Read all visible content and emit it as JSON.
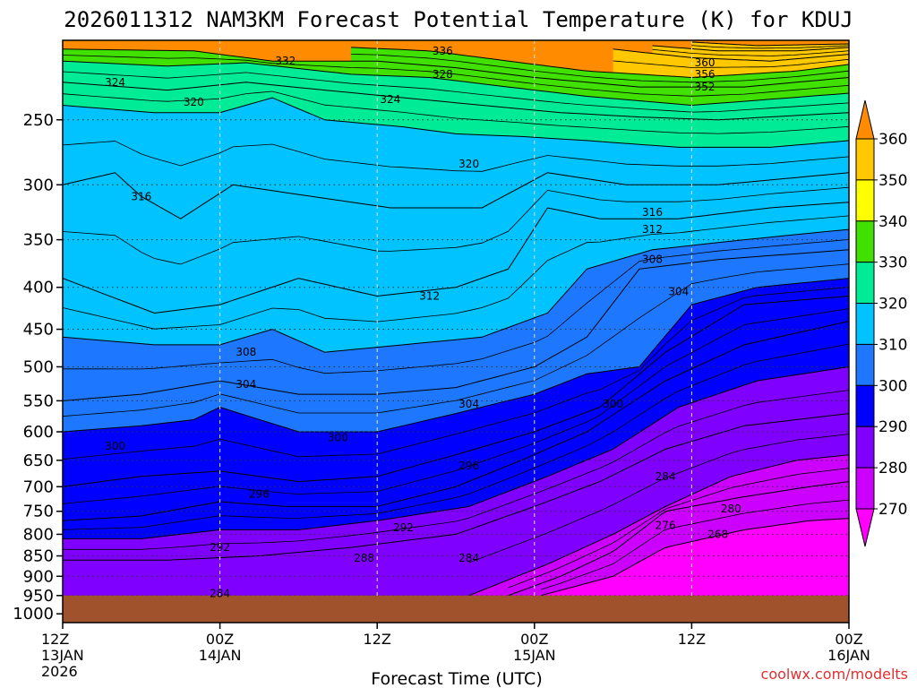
{
  "chart_data": {
    "type": "contour",
    "title": "2026011312 NAM3KM Forecast Potential Temperature (K) for KDUJ",
    "xlabel": "Forecast Time (UTC)",
    "ylabel": "",
    "x_ticks": [
      {
        "hours": 0,
        "label": [
          "12Z",
          "13JAN",
          "2026"
        ]
      },
      {
        "hours": 12,
        "label": [
          "00Z",
          "14JAN"
        ]
      },
      {
        "hours": 24,
        "label": [
          "12Z"
        ]
      },
      {
        "hours": 36,
        "label": [
          "00Z",
          "15JAN"
        ]
      },
      {
        "hours": 48,
        "label": [
          "12Z"
        ]
      },
      {
        "hours": 60,
        "label": [
          "00Z",
          "16JAN"
        ]
      }
    ],
    "xlim": [
      0,
      60
    ],
    "y_ticks": [
      "250",
      "300",
      "350",
      "400",
      "450",
      "500",
      "550",
      "600",
      "650",
      "700",
      "750",
      "800",
      "850",
      "900",
      "950",
      "1000"
    ],
    "y_tick_values": [
      250,
      300,
      350,
      400,
      450,
      500,
      550,
      600,
      650,
      700,
      750,
      800,
      850,
      900,
      950,
      1000
    ],
    "ylim": [
      200,
      1025
    ],
    "y_scale": "log",
    "grid": "dotted",
    "colorbar": {
      "labels": [
        "360",
        "350",
        "340",
        "330",
        "320",
        "310",
        "300",
        "290",
        "280",
        "270"
      ],
      "levels": [
        360,
        350,
        340,
        330,
        320,
        310,
        300,
        290,
        280,
        270
      ]
    },
    "color_scale": [
      {
        "value": 265,
        "color": "#ff00ff"
      },
      {
        "value": 275,
        "color": "#cc00ff"
      },
      {
        "value": 285,
        "color": "#8000ff"
      },
      {
        "value": 295,
        "color": "#0000ff"
      },
      {
        "value": 305,
        "color": "#1e78ff"
      },
      {
        "value": 315,
        "color": "#00c3ff"
      },
      {
        "value": 325,
        "color": "#00eb96"
      },
      {
        "value": 335,
        "color": "#40e000"
      },
      {
        "value": 345,
        "color": "#ffff00"
      },
      {
        "value": 355,
        "color": "#ffc800"
      },
      {
        "value": 365,
        "color": "#ff8c00"
      }
    ],
    "isotherms": [
      {
        "level": 268,
        "points": [
          [
            36.5,
            950
          ],
          [
            42,
            900
          ],
          [
            46,
            830
          ],
          [
            52,
            790
          ],
          [
            57,
            770
          ],
          [
            60,
            765
          ]
        ]
      },
      {
        "level": 276,
        "points": [
          [
            34,
            950
          ],
          [
            38,
            900
          ],
          [
            42,
            840
          ],
          [
            46,
            750
          ],
          [
            52,
            720
          ],
          [
            57,
            700
          ],
          [
            60,
            690
          ]
        ]
      },
      {
        "level": 280,
        "points": [
          [
            31,
            950
          ],
          [
            37,
            870
          ],
          [
            42,
            800
          ],
          [
            46,
            740
          ],
          [
            51,
            680
          ],
          [
            56,
            650
          ],
          [
            60,
            640
          ]
        ]
      },
      {
        "level": 284,
        "points": [
          [
            0,
            860
          ],
          [
            8,
            860
          ],
          [
            15,
            850
          ],
          [
            22,
            830
          ],
          [
            30,
            800
          ],
          [
            36,
            740
          ],
          [
            41,
            690
          ],
          [
            46,
            630
          ],
          [
            52,
            590
          ],
          [
            60,
            570
          ]
        ]
      },
      {
        "level": 288,
        "points": [
          [
            0,
            810
          ],
          [
            6,
            810
          ],
          [
            12,
            790
          ],
          [
            18,
            790
          ],
          [
            24,
            770
          ],
          [
            31,
            740
          ],
          [
            37,
            680
          ],
          [
            42,
            630
          ],
          [
            47,
            560
          ],
          [
            53,
            520
          ],
          [
            60,
            500
          ]
        ]
      },
      {
        "level": 292,
        "points": [
          [
            0,
            770
          ],
          [
            6,
            760
          ],
          [
            12,
            730
          ],
          [
            17,
            740
          ],
          [
            24,
            740
          ],
          [
            30,
            700
          ],
          [
            35,
            650
          ],
          [
            40,
            600
          ],
          [
            46,
            520
          ],
          [
            52,
            470
          ],
          [
            60,
            440
          ]
        ]
      },
      {
        "level": 296,
        "points": [
          [
            0,
            700
          ],
          [
            6,
            680
          ],
          [
            12,
            670
          ],
          [
            18,
            690
          ],
          [
            24,
            680
          ],
          [
            30,
            640
          ],
          [
            36,
            600
          ],
          [
            41,
            560
          ],
          [
            46,
            480
          ],
          [
            52,
            420
          ],
          [
            60,
            410
          ]
        ]
      },
      {
        "level": 300,
        "points": [
          [
            0,
            600
          ],
          [
            6,
            590
          ],
          [
            10,
            580
          ],
          [
            12,
            560
          ],
          [
            18,
            600
          ],
          [
            24,
            600
          ],
          [
            30,
            570
          ],
          [
            36,
            540
          ],
          [
            40,
            510
          ],
          [
            44,
            500
          ],
          [
            48,
            420
          ],
          [
            53,
            400
          ],
          [
            60,
            390
          ]
        ]
      },
      {
        "level": 304,
        "points": [
          [
            0,
            550
          ],
          [
            6,
            540
          ],
          [
            12,
            520
          ],
          [
            18,
            540
          ],
          [
            24,
            540
          ],
          [
            30,
            530
          ],
          [
            36,
            500
          ],
          [
            40,
            460
          ],
          [
            44,
            380
          ],
          [
            50,
            370
          ],
          [
            60,
            360
          ]
        ]
      },
      {
        "level": 308,
        "points": [
          [
            0,
            460
          ],
          [
            7,
            470
          ],
          [
            12,
            470
          ],
          [
            16,
            450
          ],
          [
            20,
            480
          ],
          [
            26,
            470
          ],
          [
            32,
            460
          ],
          [
            37,
            430
          ],
          [
            40,
            380
          ],
          [
            45,
            360
          ],
          [
            52,
            350
          ],
          [
            60,
            340
          ]
        ]
      },
      {
        "level": 312,
        "points": [
          [
            0,
            390
          ],
          [
            7,
            430
          ],
          [
            12,
            420
          ],
          [
            18,
            390
          ],
          [
            24,
            410
          ],
          [
            30,
            400
          ],
          [
            34,
            380
          ],
          [
            37,
            320
          ],
          [
            41,
            330
          ],
          [
            47,
            330
          ],
          [
            54,
            320
          ],
          [
            60,
            315
          ]
        ]
      },
      {
        "level": 316,
        "points": [
          [
            0,
            300
          ],
          [
            4,
            290
          ],
          [
            6,
            310
          ],
          [
            9,
            330
          ],
          [
            13,
            300
          ],
          [
            19,
            310
          ],
          [
            25,
            320
          ],
          [
            32,
            320
          ],
          [
            37,
            290
          ],
          [
            43,
            300
          ],
          [
            50,
            300
          ],
          [
            60,
            290
          ]
        ]
      },
      {
        "level": 320,
        "points": [
          [
            0,
            240
          ],
          [
            7,
            245
          ],
          [
            12,
            245
          ],
          [
            16,
            235
          ],
          [
            20,
            250
          ],
          [
            26,
            255
          ],
          [
            30,
            260
          ],
          [
            35,
            262
          ],
          [
            40,
            265
          ],
          [
            47,
            270
          ],
          [
            54,
            270
          ],
          [
            60,
            265
          ]
        ]
      },
      {
        "level": 324,
        "points": [
          [
            0,
            225
          ],
          [
            8,
            230
          ],
          [
            14,
            225
          ],
          [
            20,
            230
          ],
          [
            26,
            235
          ],
          [
            32,
            240
          ],
          [
            38,
            245
          ],
          [
            44,
            248
          ],
          [
            50,
            250
          ],
          [
            60,
            245
          ]
        ]
      },
      {
        "level": 328,
        "points": [
          [
            0,
            212
          ],
          [
            8,
            215
          ],
          [
            14,
            213
          ],
          [
            22,
            220
          ],
          [
            28,
            222
          ],
          [
            34,
            228
          ],
          [
            40,
            234
          ],
          [
            48,
            240
          ],
          [
            54,
            236
          ],
          [
            60,
            232
          ]
        ]
      },
      {
        "level": 332,
        "points": [
          [
            0,
            205
          ],
          [
            10,
            206
          ],
          [
            16,
            212
          ],
          [
            24,
            212
          ],
          [
            30,
            216
          ],
          [
            36,
            222
          ],
          [
            44,
            228
          ],
          [
            52,
            228
          ],
          [
            60,
            222
          ]
        ]
      },
      {
        "level": 336,
        "points": [
          [
            22,
            204
          ],
          [
            28,
            206
          ],
          [
            34,
            212
          ],
          [
            40,
            218
          ],
          [
            48,
            222
          ],
          [
            56,
            218
          ],
          [
            60,
            214
          ]
        ]
      },
      {
        "level": 352,
        "points": [
          [
            42,
            205
          ],
          [
            48,
            210
          ],
          [
            54,
            212
          ],
          [
            60,
            208
          ]
        ]
      },
      {
        "level": 356,
        "points": [
          [
            45,
            203
          ],
          [
            50,
            206
          ],
          [
            56,
            206
          ],
          [
            60,
            204
          ]
        ]
      },
      {
        "level": 360,
        "points": [
          [
            48,
            201
          ],
          [
            53,
            203
          ],
          [
            60,
            202
          ]
        ]
      }
    ],
    "contour_labels": [
      {
        "text": "324",
        "x": 4,
        "p": 225
      },
      {
        "text": "332",
        "x": 17,
        "p": 212
      },
      {
        "text": "336",
        "x": 29,
        "p": 206
      },
      {
        "text": "328",
        "x": 29,
        "p": 220
      },
      {
        "text": "320",
        "x": 10,
        "p": 238
      },
      {
        "text": "324",
        "x": 25,
        "p": 236
      },
      {
        "text": "360",
        "x": 49,
        "p": 213
      },
      {
        "text": "356",
        "x": 49,
        "p": 220
      },
      {
        "text": "352",
        "x": 49,
        "p": 228
      },
      {
        "text": "320",
        "x": 31,
        "p": 283
      },
      {
        "text": "316",
        "x": 6,
        "p": 310
      },
      {
        "text": "316",
        "x": 45,
        "p": 324
      },
      {
        "text": "312",
        "x": 45,
        "p": 340
      },
      {
        "text": "308",
        "x": 45,
        "p": 370
      },
      {
        "text": "304",
        "x": 47,
        "p": 405
      },
      {
        "text": "312",
        "x": 28,
        "p": 410
      },
      {
        "text": "308",
        "x": 14,
        "p": 480
      },
      {
        "text": "304",
        "x": 14,
        "p": 525
      },
      {
        "text": "304",
        "x": 31,
        "p": 555
      },
      {
        "text": "300",
        "x": 42,
        "p": 555
      },
      {
        "text": "300",
        "x": 21,
        "p": 610
      },
      {
        "text": "300",
        "x": 4,
        "p": 625
      },
      {
        "text": "296",
        "x": 31,
        "p": 660
      },
      {
        "text": "284",
        "x": 46,
        "p": 680
      },
      {
        "text": "296",
        "x": 15,
        "p": 715
      },
      {
        "text": "280",
        "x": 51,
        "p": 745
      },
      {
        "text": "276",
        "x": 46,
        "p": 780
      },
      {
        "text": "292",
        "x": 26,
        "p": 785
      },
      {
        "text": "268",
        "x": 50,
        "p": 800
      },
      {
        "text": "292",
        "x": 12,
        "p": 830
      },
      {
        "text": "288",
        "x": 23,
        "p": 855
      },
      {
        "text": "284",
        "x": 31,
        "p": 855
      },
      {
        "text": "284",
        "x": 12,
        "p": 945
      }
    ],
    "terrain": {
      "color": "#a0522d",
      "top_pressure": 950
    }
  },
  "footer": {
    "credit": "coolwx.com/modelts"
  }
}
